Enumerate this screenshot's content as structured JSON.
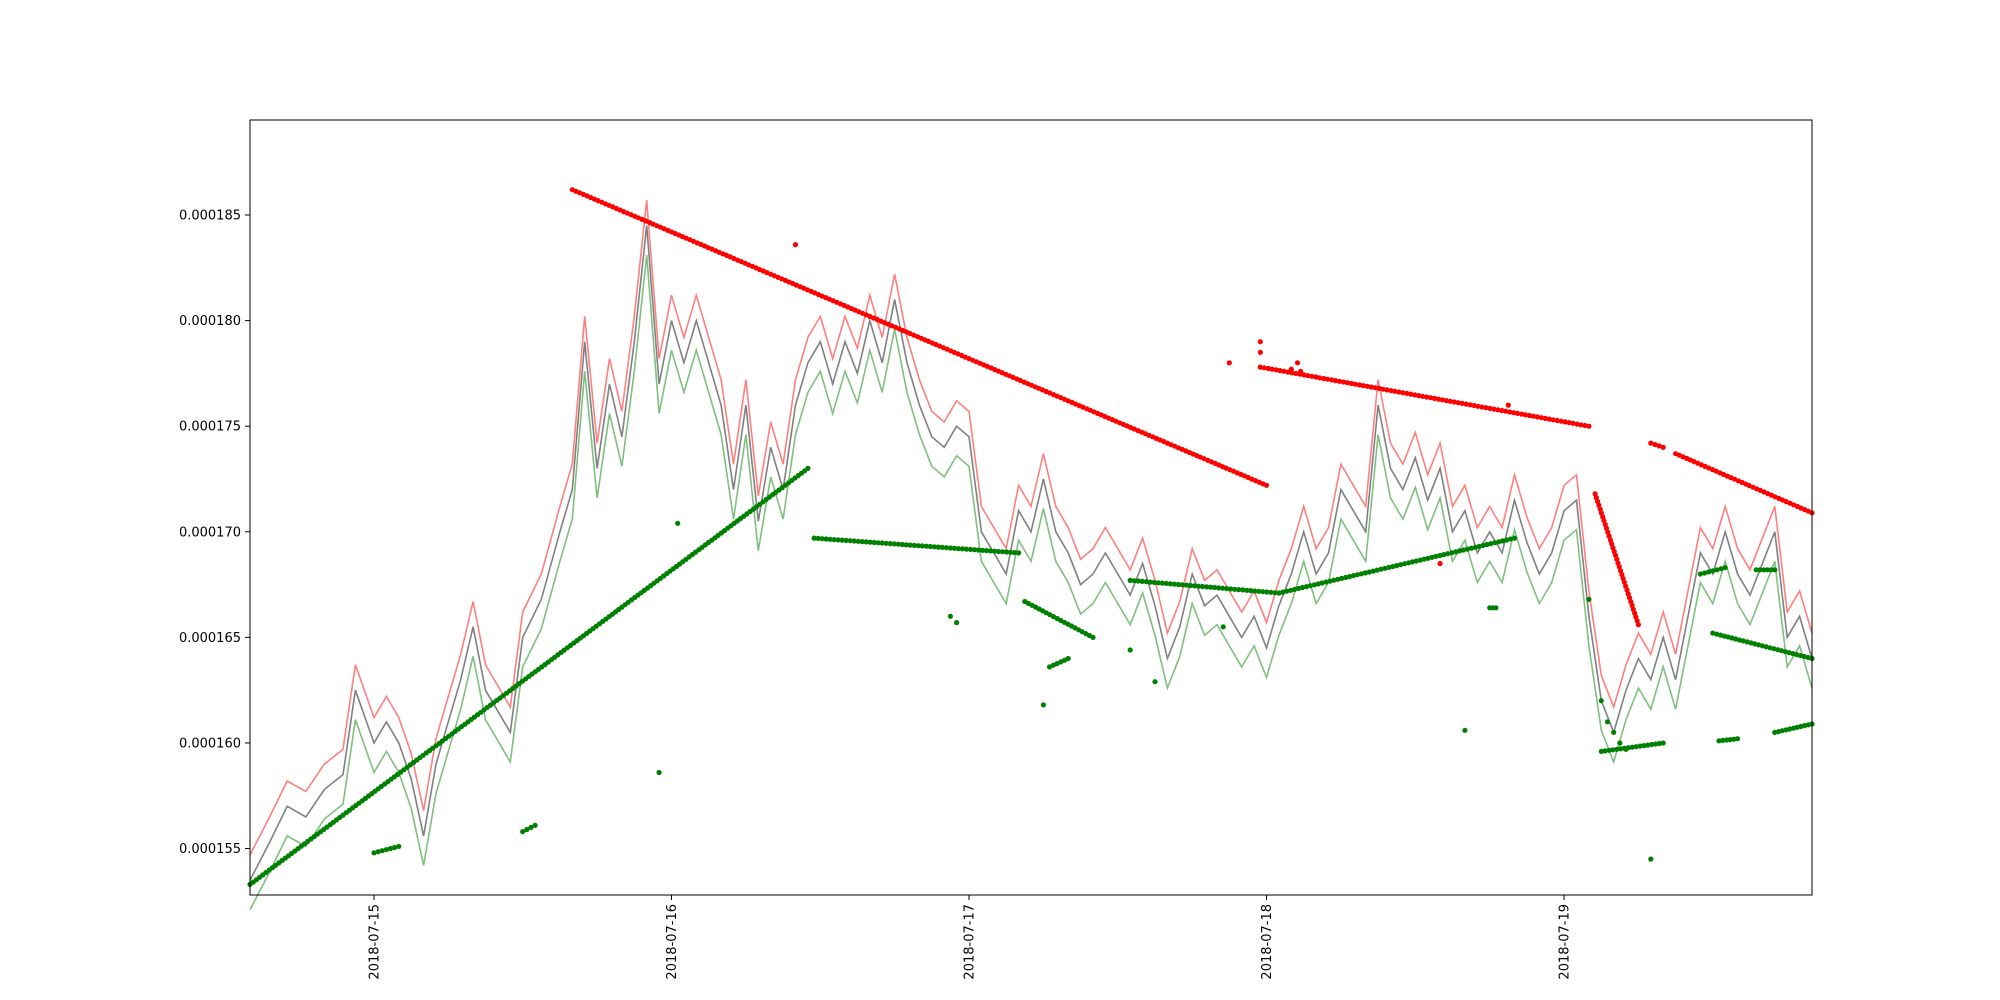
{
  "chart_data": {
    "type": "line",
    "title": "",
    "xlabel": "",
    "ylabel": "",
    "grid": false,
    "legend": "none",
    "x_type": "datetime",
    "xlim": [
      "2018-07-14 14:00",
      "2018-07-19 20:00"
    ],
    "ylim": [
      0.0001528,
      0.0001895
    ],
    "x_ticks": [
      "2018-07-15",
      "2018-07-16",
      "2018-07-17",
      "2018-07-18",
      "2018-07-19"
    ],
    "y_ticks": [
      "0.000155",
      "0.000160",
      "0.000165",
      "0.000170",
      "0.000175",
      "0.000180",
      "0.000185"
    ],
    "series": [
      {
        "kind": "line",
        "color": "#808080",
        "opacity": 1,
        "points": [
          [
            "2018-07-14 14:00",
            0.0001535
          ],
          [
            "2018-07-14 15:30",
            0.0001552
          ],
          [
            "2018-07-14 17:00",
            0.000157
          ],
          [
            "2018-07-14 18:30",
            0.0001565
          ],
          [
            "2018-07-14 20:00",
            0.0001578
          ],
          [
            "2018-07-14 21:30",
            0.0001585
          ],
          [
            "2018-07-14 22:30",
            0.0001625
          ],
          [
            "2018-07-15 00:00",
            0.00016
          ],
          [
            "2018-07-15 01:00",
            0.000161
          ],
          [
            "2018-07-15 02:00",
            0.00016
          ],
          [
            "2018-07-15 03:00",
            0.0001583
          ],
          [
            "2018-07-15 04:00",
            0.0001556
          ],
          [
            "2018-07-15 05:00",
            0.000159
          ],
          [
            "2018-07-15 06:00",
            0.000161
          ],
          [
            "2018-07-15 07:00",
            0.000163
          ],
          [
            "2018-07-15 08:00",
            0.0001655
          ],
          [
            "2018-07-15 09:00",
            0.0001625
          ],
          [
            "2018-07-15 10:00",
            0.0001615
          ],
          [
            "2018-07-15 11:00",
            0.0001605
          ],
          [
            "2018-07-15 12:00",
            0.000165
          ],
          [
            "2018-07-15 13:30",
            0.0001668
          ],
          [
            "2018-07-15 15:00",
            0.00017
          ],
          [
            "2018-07-15 16:00",
            0.000172
          ],
          [
            "2018-07-15 17:00",
            0.000179
          ],
          [
            "2018-07-15 18:00",
            0.000173
          ],
          [
            "2018-07-15 19:00",
            0.000177
          ],
          [
            "2018-07-15 20:00",
            0.0001745
          ],
          [
            "2018-07-15 21:00",
            0.000179
          ],
          [
            "2018-07-15 22:00",
            0.0001845
          ],
          [
            "2018-07-15 23:00",
            0.000177
          ],
          [
            "2018-07-16 00:00",
            0.00018
          ],
          [
            "2018-07-16 01:00",
            0.000178
          ],
          [
            "2018-07-16 02:00",
            0.00018
          ],
          [
            "2018-07-16 03:00",
            0.000178
          ],
          [
            "2018-07-16 04:00",
            0.000176
          ],
          [
            "2018-07-16 05:00",
            0.000172
          ],
          [
            "2018-07-16 06:00",
            0.000176
          ],
          [
            "2018-07-16 07:00",
            0.0001705
          ],
          [
            "2018-07-16 08:00",
            0.000174
          ],
          [
            "2018-07-16 09:00",
            0.000172
          ],
          [
            "2018-07-16 10:00",
            0.000176
          ],
          [
            "2018-07-16 11:00",
            0.000178
          ],
          [
            "2018-07-16 12:00",
            0.000179
          ],
          [
            "2018-07-16 13:00",
            0.000177
          ],
          [
            "2018-07-16 14:00",
            0.000179
          ],
          [
            "2018-07-16 15:00",
            0.0001775
          ],
          [
            "2018-07-16 16:00",
            0.00018
          ],
          [
            "2018-07-16 17:00",
            0.000178
          ],
          [
            "2018-07-16 18:00",
            0.000181
          ],
          [
            "2018-07-16 19:00",
            0.000178
          ],
          [
            "2018-07-16 20:00",
            0.000176
          ],
          [
            "2018-07-16 21:00",
            0.0001745
          ],
          [
            "2018-07-16 22:00",
            0.000174
          ],
          [
            "2018-07-16 23:00",
            0.000175
          ],
          [
            "2018-07-17 00:00",
            0.0001745
          ],
          [
            "2018-07-17 01:00",
            0.00017
          ],
          [
            "2018-07-17 02:00",
            0.000169
          ],
          [
            "2018-07-17 03:00",
            0.000168
          ],
          [
            "2018-07-17 04:00",
            0.000171
          ],
          [
            "2018-07-17 05:00",
            0.00017
          ],
          [
            "2018-07-17 06:00",
            0.0001725
          ],
          [
            "2018-07-17 07:00",
            0.00017
          ],
          [
            "2018-07-17 08:00",
            0.000169
          ],
          [
            "2018-07-17 09:00",
            0.0001675
          ],
          [
            "2018-07-17 10:00",
            0.000168
          ],
          [
            "2018-07-17 11:00",
            0.000169
          ],
          [
            "2018-07-17 12:00",
            0.000168
          ],
          [
            "2018-07-17 13:00",
            0.000167
          ],
          [
            "2018-07-17 14:00",
            0.0001685
          ],
          [
            "2018-07-17 15:00",
            0.0001665
          ],
          [
            "2018-07-17 16:00",
            0.000164
          ],
          [
            "2018-07-17 17:00",
            0.0001655
          ],
          [
            "2018-07-17 18:00",
            0.000168
          ],
          [
            "2018-07-17 19:00",
            0.0001665
          ],
          [
            "2018-07-17 20:00",
            0.000167
          ],
          [
            "2018-07-17 21:00",
            0.000166
          ],
          [
            "2018-07-17 22:00",
            0.000165
          ],
          [
            "2018-07-17 23:00",
            0.000166
          ],
          [
            "2018-07-18 00:00",
            0.0001645
          ],
          [
            "2018-07-18 01:00",
            0.0001665
          ],
          [
            "2018-07-18 02:00",
            0.000168
          ],
          [
            "2018-07-18 03:00",
            0.00017
          ],
          [
            "2018-07-18 04:00",
            0.000168
          ],
          [
            "2018-07-18 05:00",
            0.000169
          ],
          [
            "2018-07-18 06:00",
            0.000172
          ],
          [
            "2018-07-18 07:00",
            0.000171
          ],
          [
            "2018-07-18 08:00",
            0.00017
          ],
          [
            "2018-07-18 09:00",
            0.000176
          ],
          [
            "2018-07-18 10:00",
            0.000173
          ],
          [
            "2018-07-18 11:00",
            0.000172
          ],
          [
            "2018-07-18 12:00",
            0.0001735
          ],
          [
            "2018-07-18 13:00",
            0.0001715
          ],
          [
            "2018-07-18 14:00",
            0.000173
          ],
          [
            "2018-07-18 15:00",
            0.00017
          ],
          [
            "2018-07-18 16:00",
            0.000171
          ],
          [
            "2018-07-18 17:00",
            0.000169
          ],
          [
            "2018-07-18 18:00",
            0.00017
          ],
          [
            "2018-07-18 19:00",
            0.000169
          ],
          [
            "2018-07-18 20:00",
            0.0001715
          ],
          [
            "2018-07-18 21:00",
            0.0001695
          ],
          [
            "2018-07-18 22:00",
            0.000168
          ],
          [
            "2018-07-18 23:00",
            0.000169
          ],
          [
            "2018-07-19 00:00",
            0.000171
          ],
          [
            "2018-07-19 01:00",
            0.0001715
          ],
          [
            "2018-07-19 02:00",
            0.000166
          ],
          [
            "2018-07-19 03:00",
            0.000162
          ],
          [
            "2018-07-19 04:00",
            0.0001605
          ],
          [
            "2018-07-19 05:00",
            0.0001625
          ],
          [
            "2018-07-19 06:00",
            0.000164
          ],
          [
            "2018-07-19 07:00",
            0.000163
          ],
          [
            "2018-07-19 08:00",
            0.000165
          ],
          [
            "2018-07-19 09:00",
            0.000163
          ],
          [
            "2018-07-19 10:00",
            0.000166
          ],
          [
            "2018-07-19 11:00",
            0.000169
          ],
          [
            "2018-07-19 12:00",
            0.000168
          ],
          [
            "2018-07-19 13:00",
            0.00017
          ],
          [
            "2018-07-19 14:00",
            0.000168
          ],
          [
            "2018-07-19 15:00",
            0.000167
          ],
          [
            "2018-07-19 16:00",
            0.0001685
          ],
          [
            "2018-07-19 17:00",
            0.00017
          ],
          [
            "2018-07-19 18:00",
            0.000165
          ],
          [
            "2018-07-19 19:00",
            0.000166
          ],
          [
            "2018-07-19 20:00",
            0.000164
          ]
        ]
      },
      {
        "kind": "band-upper",
        "color": "#ff0000",
        "opacity": 0.5,
        "offset": 1.2e-06
      },
      {
        "kind": "band-lower",
        "color": "#008000",
        "opacity": 0.5,
        "offset": 1.4e-06
      },
      {
        "kind": "dots",
        "color": "#ff0000",
        "segments": [
          [
            [
              "2018-07-15 16:00",
              0.0001862
            ],
            [
              "2018-07-18 00:00",
              0.0001722
            ]
          ],
          [
            [
              "2018-07-17 23:30",
              0.0001778
            ],
            [
              "2018-07-19 02:00",
              0.000175
            ]
          ],
          [
            [
              "2018-07-19 02:30",
              0.0001718
            ],
            [
              "2018-07-19 06:00",
              0.0001656
            ]
          ],
          [
            [
              "2018-07-19 07:00",
              0.0001742
            ],
            [
              "2018-07-19 08:00",
              0.000174
            ]
          ],
          [
            [
              "2018-07-19 09:00",
              0.0001737
            ],
            [
              "2018-07-19 20:00",
              0.0001709
            ]
          ]
        ],
        "points": [
          [
            "2018-07-16 10:00",
            0.0001836
          ],
          [
            "2018-07-17 21:00",
            0.000178
          ],
          [
            "2018-07-17 23:30",
            0.0001785
          ],
          [
            "2018-07-17 23:30",
            0.000179
          ],
          [
            "2018-07-18 02:00",
            0.0001777
          ],
          [
            "2018-07-18 02:30",
            0.000178
          ],
          [
            "2018-07-18 02:45",
            0.0001776
          ],
          [
            "2018-07-18 14:00",
            0.0001685
          ],
          [
            "2018-07-18 19:30",
            0.000176
          ]
        ]
      },
      {
        "kind": "dots",
        "color": "#008000",
        "segments": [
          [
            [
              "2018-07-14 14:00",
              0.0001533
            ],
            [
              "2018-07-16 11:00",
              0.000173
            ]
          ],
          [
            [
              "2018-07-16 11:30",
              0.0001697
            ],
            [
              "2018-07-17 04:00",
              0.000169
            ]
          ],
          [
            [
              "2018-07-17 04:30",
              0.0001667
            ],
            [
              "2018-07-17 10:00",
              0.000165
            ]
          ],
          [
            [
              "2018-07-17 13:00",
              0.0001677
            ],
            [
              "2018-07-18 01:00",
              0.0001671
            ]
          ],
          [
            [
              "2018-07-18 01:00",
              0.0001671
            ],
            [
              "2018-07-18 20:00",
              0.0001697
            ]
          ],
          [
            [
              "2018-07-18 18:00",
              0.0001664
            ],
            [
              "2018-07-18 18:30",
              0.0001664
            ]
          ],
          [
            [
              "2018-07-19 03:00",
              0.0001596
            ],
            [
              "2018-07-19 08:00",
              0.00016
            ]
          ],
          [
            [
              "2018-07-19 11:00",
              0.000168
            ],
            [
              "2018-07-19 13:00",
              0.0001683
            ]
          ],
          [
            [
              "2018-07-19 12:00",
              0.0001652
            ],
            [
              "2018-07-19 20:00",
              0.000164
            ]
          ],
          [
            [
              "2018-07-19 15:30",
              0.0001682
            ],
            [
              "2018-07-19 17:00",
              0.0001682
            ]
          ],
          [
            [
              "2018-07-19 17:00",
              0.0001605
            ],
            [
              "2018-07-19 20:00",
              0.0001609
            ]
          ],
          [
            [
              "2018-07-15 00:00",
              0.0001548
            ],
            [
              "2018-07-15 02:00",
              0.0001551
            ]
          ],
          [
            [
              "2018-07-15 12:00",
              0.0001558
            ],
            [
              "2018-07-15 13:00",
              0.0001561
            ]
          ],
          [
            [
              "2018-07-17 06:30",
              0.0001636
            ],
            [
              "2018-07-17 08:00",
              0.000164
            ]
          ],
          [
            [
              "2018-07-19 12:30",
              0.0001601
            ],
            [
              "2018-07-19 14:00",
              0.0001602
            ]
          ]
        ],
        "points": [
          [
            "2018-07-15 23:00",
            0.0001586
          ],
          [
            "2018-07-16 00:30",
            0.0001704
          ],
          [
            "2018-07-16 22:30",
            0.000166
          ],
          [
            "2018-07-16 23:00",
            0.0001657
          ],
          [
            "2018-07-17 06:00",
            0.0001618
          ],
          [
            "2018-07-17 13:00",
            0.0001644
          ],
          [
            "2018-07-17 15:00",
            0.0001629
          ],
          [
            "2018-07-17 20:30",
            0.0001655
          ],
          [
            "2018-07-18 16:00",
            0.0001606
          ],
          [
            "2018-07-19 02:00",
            0.0001668
          ],
          [
            "2018-07-19 03:00",
            0.000162
          ],
          [
            "2018-07-19 03:30",
            0.000161
          ],
          [
            "2018-07-19 04:00",
            0.0001605
          ],
          [
            "2018-07-19 04:30",
            0.00016
          ],
          [
            "2018-07-19 05:00",
            0.0001597
          ],
          [
            "2018-07-19 07:00",
            0.0001545
          ]
        ]
      }
    ]
  }
}
